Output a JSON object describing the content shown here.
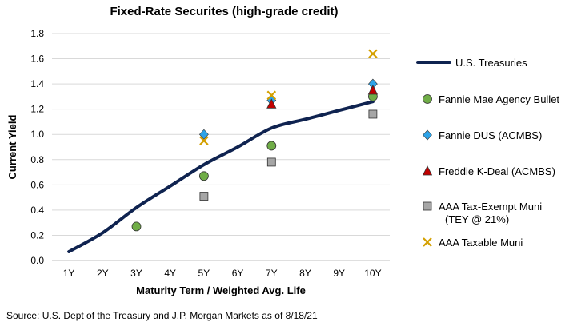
{
  "chart_data": {
    "type": "scatter",
    "title": "Fixed-Rate Securites (high-grade credit)",
    "xlabel": "Maturity Term / Weighted Avg. Life",
    "ylabel": "Current Yield",
    "categories": [
      "1Y",
      "2Y",
      "3Y",
      "4Y",
      "5Y",
      "6Y",
      "7Y",
      "8Y",
      "9Y",
      "10Y"
    ],
    "ylim": [
      0,
      1.8
    ],
    "yticks": [
      "0.0",
      "0.2",
      "0.4",
      "0.6",
      "0.8",
      "1.0",
      "1.2",
      "1.4",
      "1.6",
      "1.8"
    ],
    "grid": true,
    "legend_position": "right",
    "series": [
      {
        "name": "U.S. Treasuries",
        "kind": "line",
        "color": "#0f2350",
        "values": [
          0.07,
          0.22,
          0.42,
          0.59,
          0.76,
          0.9,
          1.05,
          1.12,
          1.19,
          1.26
        ]
      },
      {
        "name": "Fannie Mae Agency Bullet",
        "kind": "marker",
        "marker": "circle",
        "color": "#70ad47",
        "points": [
          {
            "x": "3Y",
            "y": 0.27
          },
          {
            "x": "5Y",
            "y": 0.67
          },
          {
            "x": "7Y",
            "y": 0.91
          },
          {
            "x": "10Y",
            "y": 1.3
          }
        ]
      },
      {
        "name": "Fannie DUS (ACMBS)",
        "kind": "marker",
        "marker": "diamond",
        "color": "#2ea3e8",
        "points": [
          {
            "x": "5Y",
            "y": 1.0
          },
          {
            "x": "7Y",
            "y": 1.27
          },
          {
            "x": "10Y",
            "y": 1.4
          }
        ]
      },
      {
        "name": "Freddie K-Deal (ACMBS)",
        "kind": "marker",
        "marker": "triangle",
        "color": "#c00000",
        "points": [
          {
            "x": "7Y",
            "y": 1.24
          },
          {
            "x": "10Y",
            "y": 1.35
          }
        ]
      },
      {
        "name": "AAA Tax-Exempt Muni (TEY @ 21%)",
        "kind": "marker",
        "marker": "square",
        "color": "#a6a6a6",
        "points": [
          {
            "x": "5Y",
            "y": 0.51
          },
          {
            "x": "7Y",
            "y": 0.78
          },
          {
            "x": "10Y",
            "y": 1.16
          }
        ]
      },
      {
        "name": "AAA Taxable Muni",
        "kind": "marker",
        "marker": "x",
        "color": "#d4a000",
        "points": [
          {
            "x": "5Y",
            "y": 0.95
          },
          {
            "x": "7Y",
            "y": 1.31
          },
          {
            "x": "10Y",
            "y": 1.64
          }
        ]
      }
    ],
    "legend": [
      {
        "lines": [
          "U.S. Treasuries"
        ]
      },
      {
        "lines": [
          "Fannie Mae Agency Bullet"
        ]
      },
      {
        "lines": [
          "Fannie DUS (ACMBS)"
        ]
      },
      {
        "lines": [
          "Freddie K-Deal (ACMBS)"
        ]
      },
      {
        "lines": [
          "AAA Tax-Exempt Muni",
          "(TEY @ 21%)"
        ]
      },
      {
        "lines": [
          "AAA Taxable Muni"
        ]
      }
    ],
    "source": "Source: U.S. Dept of the Treasury and  J.P. Morgan Markets as of 8/18/21"
  }
}
